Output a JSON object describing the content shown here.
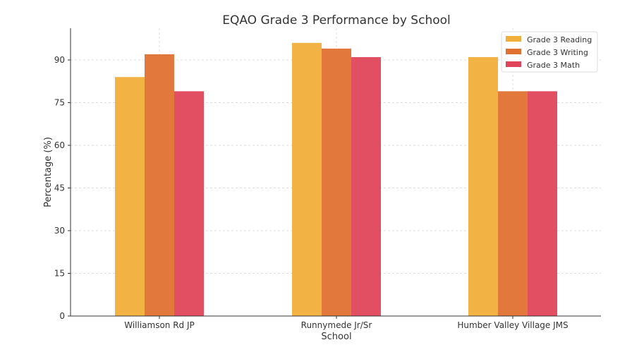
{
  "chart_data": {
    "type": "bar",
    "title": "EQAO Grade 3 Performance by School",
    "xlabel": "School",
    "ylabel": "Percentage (%)",
    "categories": [
      "Williamson Rd JP",
      "Runnymede Jr/Sr",
      "Humber Valley Village JMS"
    ],
    "series": [
      {
        "name": "Grade 3 Reading",
        "color": "#f2ae3a",
        "values": [
          84,
          96,
          91
        ]
      },
      {
        "name": "Grade 3 Writing",
        "color": "#e07132",
        "values": [
          92,
          94,
          79
        ]
      },
      {
        "name": "Grade 3 Math",
        "color": "#e0445a",
        "values": [
          79,
          91,
          79
        ]
      }
    ],
    "yticks": [
      0,
      15,
      30,
      45,
      60,
      75,
      90
    ],
    "ylim": [
      0,
      101
    ],
    "grid": true,
    "legend": "top-right"
  }
}
